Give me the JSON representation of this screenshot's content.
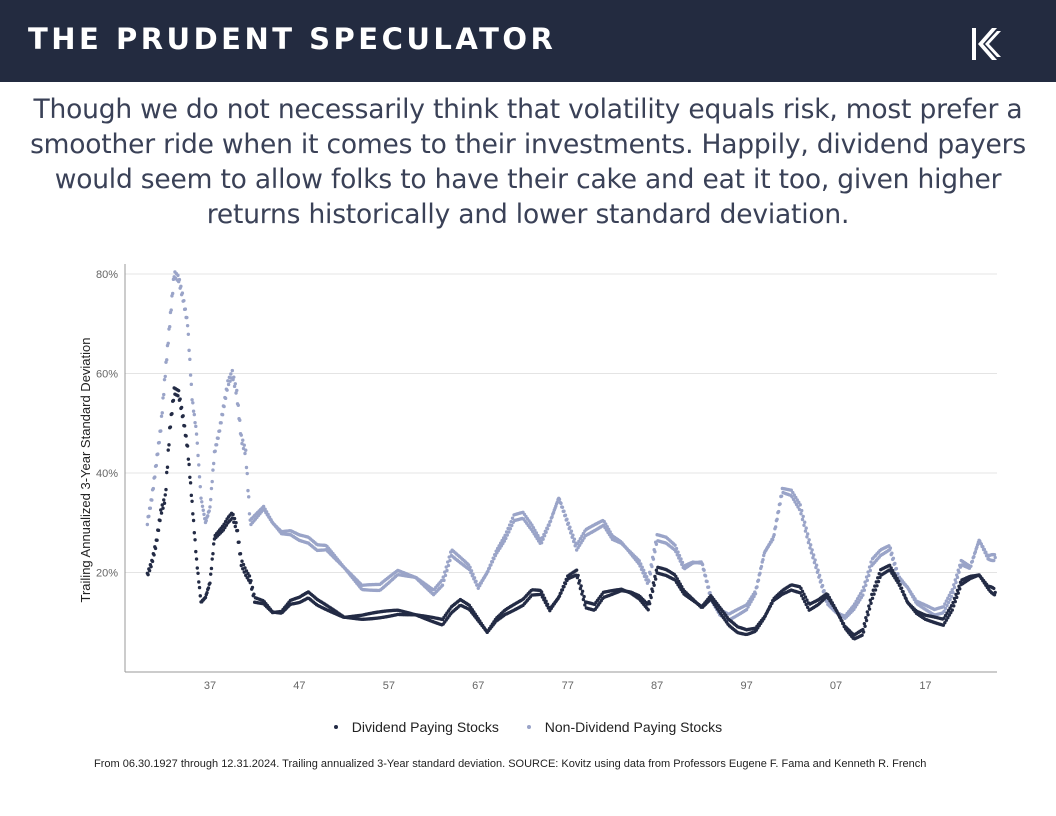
{
  "header": {
    "brand": "THE PRUDENT SPECULATOR",
    "logo_icon": "kovitz-k-logo-icon"
  },
  "headline": "Though we do not necessarily think that volatility equals risk, most prefer a smoother ride when it comes to their investments. Happily, dividend payers would seem to allow folks to have their cake and eat it too, given higher returns historically and lower standard deviation.",
  "footnote": "From 06.30.1927 through 12.31.2024. Trailing annualized 3-Year standard deviation. SOURCE: Kovitz using data from Professors Eugene F. Fama and Kenneth R. French",
  "chart_data": {
    "type": "scatter",
    "title": "",
    "xlabel": "",
    "ylabel": "Trailing Annualized 3-Year Standard Deviation",
    "xlim": [
      1927.5,
      2025.0
    ],
    "ylim": [
      0,
      82
    ],
    "x_ticks": [
      1937,
      1947,
      1957,
      1967,
      1977,
      1987,
      1997,
      2007,
      2017
    ],
    "x_tick_labels": [
      "37",
      "47",
      "57",
      "67",
      "77",
      "87",
      "97",
      "07",
      "17"
    ],
    "y_ticks": [
      20,
      40,
      60,
      80
    ],
    "y_tick_labels": [
      "20%",
      "40%",
      "60%",
      "80%"
    ],
    "grid": "horizontal",
    "legend_position": "bottom",
    "colors": {
      "dividend": "#232b45",
      "non_dividend": "#9aa4c8",
      "grid": "#e4e4e4",
      "axis": "#999999"
    },
    "series": [
      {
        "name": "Dividend Paying Stocks",
        "color": "#232b45",
        "x": [
          1930.0,
          1930.5,
          1931.0,
          1931.5,
          1932.0,
          1932.5,
          1933.0,
          1933.5,
          1934.0,
          1934.5,
          1935.0,
          1935.5,
          1936.0,
          1936.5,
          1937.0,
          1937.5,
          1938.0,
          1938.5,
          1939.0,
          1939.5,
          1940.0,
          1940.5,
          1941.0,
          1941.5,
          1942.0,
          1943.0,
          1944.0,
          1945.0,
          1946.0,
          1947.0,
          1948.0,
          1949.0,
          1950.0,
          1952.0,
          1954.0,
          1956.0,
          1958.0,
          1960.0,
          1962.0,
          1963.0,
          1964.0,
          1965.0,
          1966.0,
          1967.0,
          1968.0,
          1969.0,
          1970.0,
          1971.0,
          1972.0,
          1973.0,
          1974.0,
          1975.0,
          1976.0,
          1977.0,
          1978.0,
          1979.0,
          1980.0,
          1981.0,
          1982.0,
          1983.0,
          1984.0,
          1985.0,
          1986.0,
          1987.0,
          1988.0,
          1989.0,
          1990.0,
          1991.0,
          1992.0,
          1993.0,
          1994.0,
          1995.0,
          1996.0,
          1997.0,
          1998.0,
          1999.0,
          2000.0,
          2001.0,
          2002.0,
          2003.0,
          2004.0,
          2005.0,
          2006.0,
          2007.0,
          2008.0,
          2009.0,
          2010.0,
          2011.0,
          2012.0,
          2013.0,
          2014.0,
          2015.0,
          2016.0,
          2017.0,
          2018.0,
          2019.0,
          2020.0,
          2021.0,
          2022.0,
          2023.0,
          2024.0,
          2024.8
        ],
        "y": [
          19.5,
          22.0,
          26.0,
          32.0,
          35.0,
          48.5,
          56.5,
          56.0,
          51.0,
          45.0,
          34.0,
          22.5,
          14.0,
          15.0,
          18.0,
          27.0,
          28.0,
          29.0,
          30.5,
          31.5,
          29.0,
          22.0,
          20.0,
          18.5,
          14.5,
          14.0,
          12.0,
          12.0,
          14.0,
          14.5,
          15.5,
          14.0,
          13.0,
          11.0,
          11.0,
          11.5,
          12.0,
          11.5,
          10.5,
          10.0,
          12.5,
          14.0,
          13.0,
          10.5,
          8.0,
          10.5,
          12.0,
          13.0,
          14.0,
          16.0,
          16.0,
          12.5,
          15.0,
          19.0,
          20.0,
          13.5,
          13.0,
          15.5,
          16.0,
          16.5,
          16.0,
          15.0,
          13.0,
          20.5,
          20.0,
          19.0,
          16.0,
          14.5,
          13.0,
          15.0,
          12.5,
          10.0,
          8.5,
          8.0,
          8.5,
          11.0,
          14.5,
          16.0,
          17.0,
          16.5,
          13.0,
          14.0,
          15.5,
          12.5,
          9.0,
          7.0,
          8.0,
          15.0,
          20.0,
          21.0,
          18.0,
          14.0,
          12.0,
          11.0,
          10.5,
          10.0,
          13.0,
          18.0,
          19.0,
          19.5,
          17.0,
          16.0
        ]
      },
      {
        "name": "Non-Dividend Paying Stocks",
        "color": "#9aa4c8",
        "x": [
          1930.0,
          1930.5,
          1931.0,
          1931.5,
          1932.0,
          1932.5,
          1933.0,
          1933.5,
          1934.0,
          1934.5,
          1935.0,
          1935.5,
          1936.0,
          1936.5,
          1937.0,
          1937.5,
          1938.0,
          1938.5,
          1939.0,
          1939.5,
          1940.0,
          1940.5,
          1941.0,
          1941.5,
          1942.0,
          1943.0,
          1944.0,
          1945.0,
          1946.0,
          1947.0,
          1948.0,
          1949.0,
          1950.0,
          1952.0,
          1954.0,
          1956.0,
          1958.0,
          1960.0,
          1962.0,
          1963.0,
          1964.0,
          1965.0,
          1966.0,
          1967.0,
          1968.0,
          1969.0,
          1970.0,
          1971.0,
          1972.0,
          1973.0,
          1974.0,
          1975.0,
          1976.0,
          1977.0,
          1978.0,
          1979.0,
          1980.0,
          1981.0,
          1982.0,
          1983.0,
          1984.0,
          1985.0,
          1986.0,
          1987.0,
          1988.0,
          1989.0,
          1990.0,
          1991.0,
          1992.0,
          1993.0,
          1994.0,
          1995.0,
          1996.0,
          1997.0,
          1998.0,
          1999.0,
          2000.0,
          2001.0,
          2002.0,
          2003.0,
          2004.0,
          2005.0,
          2006.0,
          2007.0,
          2008.0,
          2009.0,
          2010.0,
          2011.0,
          2012.0,
          2013.0,
          2014.0,
          2015.0,
          2016.0,
          2017.0,
          2018.0,
          2019.0,
          2020.0,
          2021.0,
          2022.0,
          2023.0,
          2024.0,
          2024.8
        ],
        "y": [
          30.0,
          35.0,
          42.0,
          49.0,
          60.0,
          70.0,
          80.0,
          79.0,
          75.0,
          70.0,
          55.0,
          48.0,
          35.0,
          30.0,
          33.0,
          44.0,
          48.0,
          53.0,
          58.0,
          60.0,
          56.0,
          47.0,
          44.0,
          30.0,
          31.0,
          33.0,
          30.0,
          28.0,
          28.0,
          27.0,
          26.5,
          25.0,
          25.0,
          21.0,
          17.0,
          17.0,
          20.0,
          19.0,
          16.0,
          18.0,
          24.0,
          22.5,
          21.0,
          17.0,
          20.0,
          24.0,
          27.0,
          31.0,
          31.5,
          29.0,
          26.0,
          30.0,
          35.0,
          30.0,
          25.0,
          28.0,
          29.0,
          30.0,
          27.0,
          26.0,
          24.0,
          22.0,
          18.0,
          27.0,
          26.5,
          25.0,
          21.0,
          22.0,
          22.0,
          15.0,
          12.0,
          11.0,
          12.0,
          13.0,
          16.0,
          24.0,
          27.0,
          36.5,
          36.0,
          33.0,
          26.0,
          20.0,
          14.0,
          12.0,
          11.0,
          13.0,
          16.0,
          22.0,
          24.0,
          25.0,
          19.0,
          17.0,
          14.0,
          13.0,
          12.0,
          12.5,
          16.0,
          22.0,
          21.0,
          26.5,
          23.0,
          23.0
        ]
      }
    ]
  }
}
